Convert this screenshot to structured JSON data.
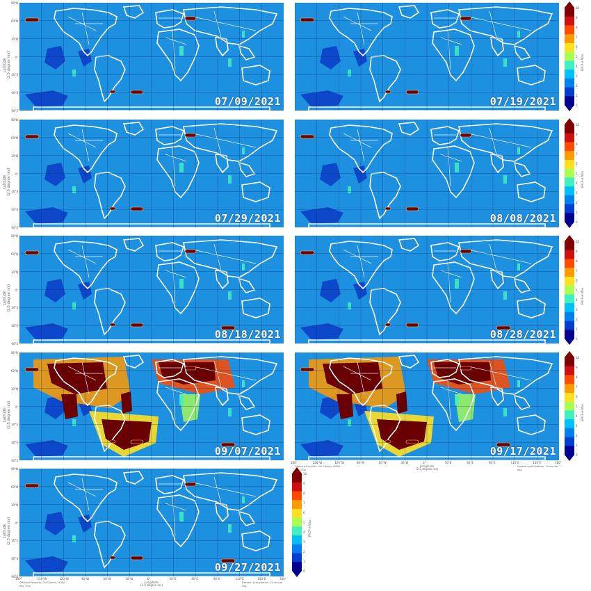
{
  "panels": [
    {
      "date": "07/09/2021"
    },
    {
      "date": "07/19/2021"
    },
    {
      "date": "07/29/2021"
    },
    {
      "date": "08/08/2021"
    },
    {
      "date": "08/18/2021"
    },
    {
      "date": "08/28/2021"
    },
    {
      "date": "09/07/2021"
    },
    {
      "date": "09/17/2021"
    },
    {
      "date": "09/27/2021"
    }
  ],
  "axes": {
    "y_ticks": [
      "90°N",
      "60°N",
      "30°N",
      "0°",
      "30°S",
      "60°S",
      "90°S"
    ],
    "x_ticks": [
      "180°",
      "150°W",
      "120°W",
      "90°W",
      "60°W",
      "30°W",
      "0°",
      "30°E",
      "60°E",
      "90°E",
      "120°E",
      "150°E",
      "180°"
    ],
    "y_title": "Latitude",
    "y_subtitle": "(2.5 degree res)",
    "x_title": "Longitude",
    "x_subtitle": "(2.5 degree res)",
    "credit_left": "Offshore Products: Gin Carbon, NOAA Rev. Flux",
    "credit_right": "Dataset: precipitation, 10 minute avg"
  },
  "colorbar": {
    "title": "PRCP-H Max",
    "ticks": [
      "10",
      "9",
      "8",
      "7",
      "6",
      "5",
      "4",
      "3",
      "2",
      "1",
      "0"
    ],
    "colors": [
      "#800000",
      "#d01010",
      "#ff4a00",
      "#ff9a00",
      "#ffe020",
      "#a8ff50",
      "#40f0c0",
      "#00c0f8",
      "#0080f0",
      "#0040d0",
      "#000090"
    ]
  },
  "colors": {
    "ocean": "#1e90e0",
    "land_line": "#ffffff",
    "high": "#6b0000"
  }
}
